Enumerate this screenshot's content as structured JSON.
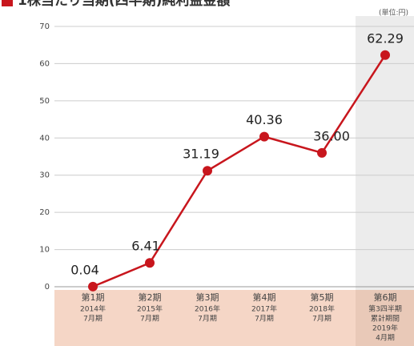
{
  "chart_data": {
    "type": "line",
    "title": "1株当たり当期(四半期)純利益金額",
    "unit_label": "(単位:円)",
    "categories": [
      [
        "第1期",
        "2014年",
        "7月期"
      ],
      [
        "第2期",
        "2015年",
        "7月期"
      ],
      [
        "第3期",
        "2016年",
        "7月期"
      ],
      [
        "第4期",
        "2017年",
        "7月期"
      ],
      [
        "第5期",
        "2018年",
        "7月期"
      ],
      [
        "第6期",
        "第3四半期",
        "累計期間",
        "2019年",
        "4月期"
      ]
    ],
    "values": [
      0.04,
      6.41,
      31.19,
      40.36,
      36.0,
      62.29
    ],
    "value_labels": [
      "0.04",
      "6.41",
      "31.19",
      "40.36",
      "36.00",
      "62.29"
    ],
    "color": "#c8161d",
    "ylim": [
      0,
      70
    ],
    "yticks": [
      0,
      10,
      20,
      30,
      40,
      50,
      60,
      70
    ],
    "grid": true
  }
}
